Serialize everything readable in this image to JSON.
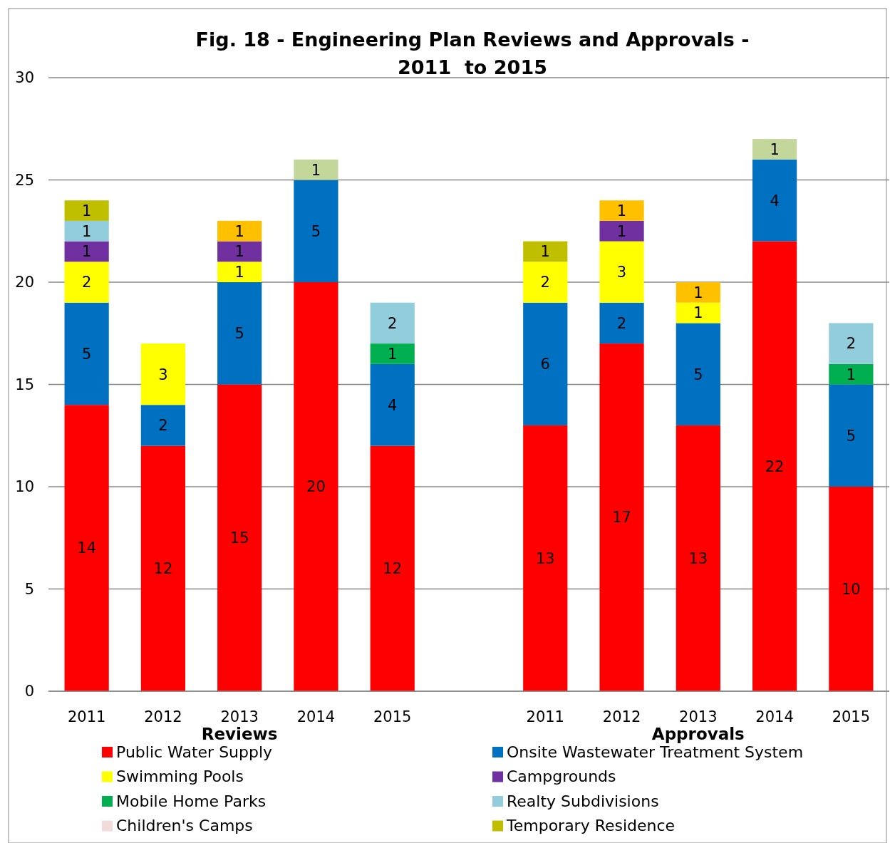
{
  "chart_data": {
    "type": "bar",
    "title": "Fig. 18 - Engineering Plan Reviews and Approvals -\n2011  to 2015",
    "categories": [
      "2011",
      "2012",
      "2013",
      "2014",
      "2015",
      null,
      "2011",
      "2012",
      "2013",
      "2014",
      "2015"
    ],
    "stacked": true,
    "data_labels": true,
    "grid": "y",
    "legend": "bottom",
    "ylim": [
      0,
      30
    ],
    "yticks": [
      0,
      5,
      10,
      15,
      20,
      25,
      30
    ],
    "annotations": [
      "Reviews",
      "Approvals"
    ],
    "series": [
      {
        "name": "Public Water Supply",
        "color": "#ff0000",
        "values": [
          14,
          12,
          15,
          20,
          12,
          null,
          13,
          17,
          13,
          22,
          10
        ]
      },
      {
        "name": "Onsite Wastewater Treatment System",
        "color": "#0070c0",
        "values": [
          5,
          2,
          5,
          5,
          4,
          null,
          6,
          2,
          5,
          4,
          5
        ]
      },
      {
        "name": "Swimming Pools",
        "color": "#ffff00",
        "values": [
          2,
          3,
          1,
          null,
          null,
          null,
          2,
          3,
          1,
          null,
          null
        ]
      },
      {
        "name": "Campgrounds",
        "color": "#7030a0",
        "values": [
          1,
          null,
          1,
          null,
          null,
          null,
          null,
          1,
          null,
          null,
          null
        ]
      },
      {
        "name": "Mobile Home Parks",
        "color": "#00b050",
        "values": [
          null,
          null,
          null,
          null,
          1,
          null,
          null,
          null,
          null,
          null,
          1
        ]
      },
      {
        "name": "Realty Subdivisions",
        "color": "#92cddc",
        "values": [
          1,
          null,
          null,
          null,
          2,
          null,
          null,
          null,
          null,
          null,
          2
        ]
      },
      {
        "name": "Children's Camps",
        "color": "#f2dcdb",
        "values": [
          null,
          null,
          null,
          null,
          null,
          null,
          null,
          null,
          null,
          null,
          null
        ]
      },
      {
        "name": "Temporary Residence",
        "color": "#bfbf00",
        "values": [
          1,
          null,
          null,
          null,
          null,
          null,
          1,
          null,
          null,
          null,
          null
        ]
      },
      {
        "color": "#ffc000",
        "values": [
          null,
          null,
          1,
          null,
          null,
          null,
          null,
          1,
          1,
          null,
          null
        ]
      },
      {
        "color": "#c4d79b",
        "values": [
          null,
          null,
          null,
          1,
          null,
          null,
          null,
          null,
          null,
          1,
          null
        ]
      }
    ]
  }
}
